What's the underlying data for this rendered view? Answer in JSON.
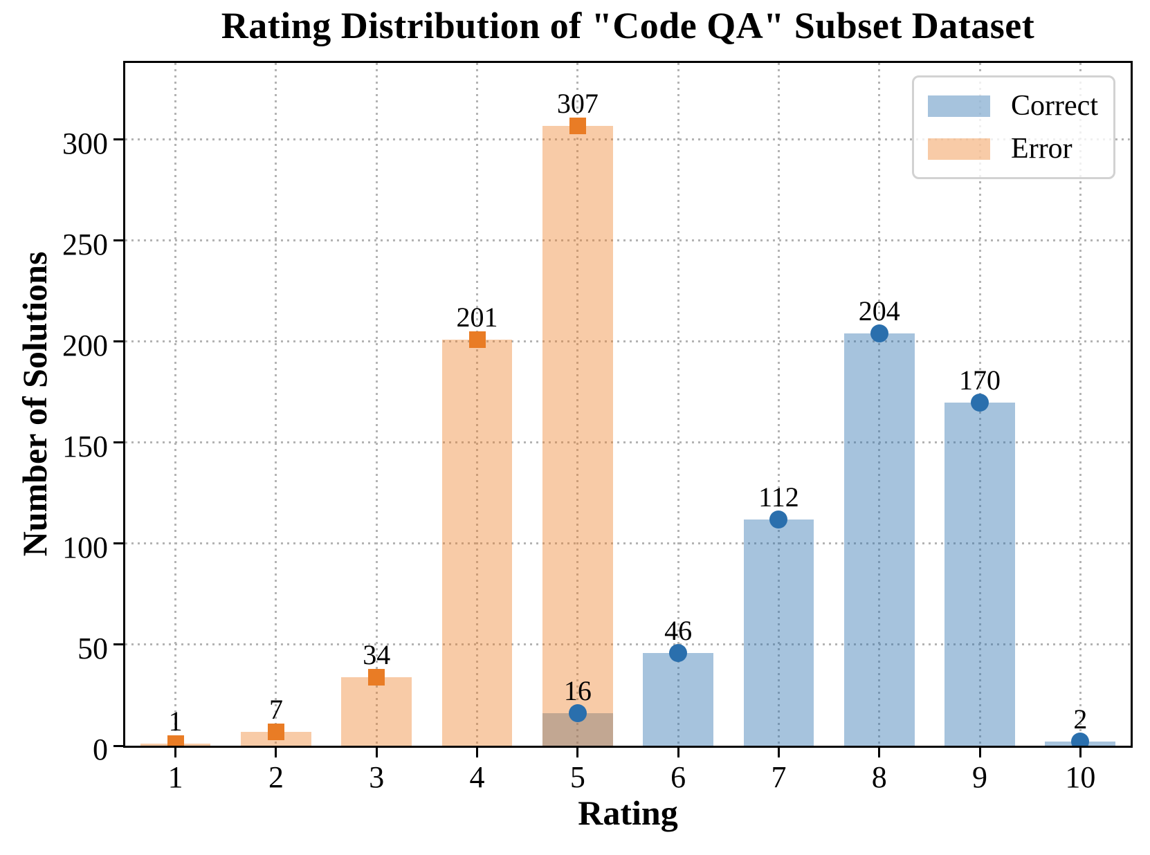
{
  "chart_data": {
    "type": "bar",
    "title": "Rating Distribution of \"Code QA\" Subset Dataset",
    "xlabel": "Rating",
    "ylabel": "Number of Solutions",
    "categories": [
      "1",
      "2",
      "3",
      "4",
      "5",
      "6",
      "7",
      "8",
      "9",
      "10"
    ],
    "series": [
      {
        "name": "Correct",
        "marker": "circle",
        "marker_color": "#2a6fad",
        "fill": "rgba(42,111,173,0.42)",
        "values": [
          null,
          null,
          null,
          null,
          16,
          46,
          112,
          204,
          170,
          2
        ]
      },
      {
        "name": "Error",
        "marker": "square",
        "marker_color": "#e97c25",
        "fill": "rgba(238,124,34,0.40)",
        "values": [
          1,
          7,
          34,
          201,
          307,
          null,
          null,
          null,
          null,
          null
        ]
      }
    ],
    "ylim": [
      0,
      338
    ],
    "yticks": [
      0,
      50,
      100,
      150,
      200,
      250,
      300
    ],
    "grid": true,
    "grid_color": "#b3b3b3",
    "axis_color": "#000000",
    "legend_position": "upper right"
  }
}
